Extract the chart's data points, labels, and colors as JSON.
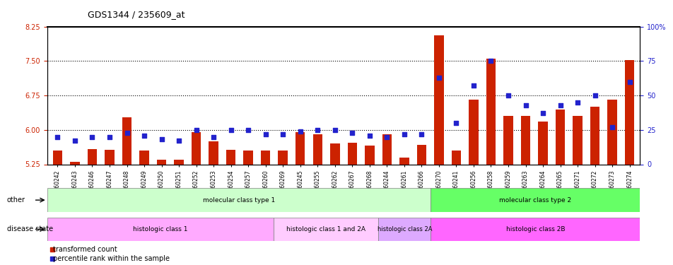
{
  "title": "GDS1344 / 235609_at",
  "samples": [
    "GSM60242",
    "GSM60243",
    "GSM60246",
    "GSM60247",
    "GSM60248",
    "GSM60249",
    "GSM60250",
    "GSM60251",
    "GSM60252",
    "GSM60253",
    "GSM60254",
    "GSM60257",
    "GSM60260",
    "GSM60269",
    "GSM60245",
    "GSM60255",
    "GSM60262",
    "GSM60267",
    "GSM60268",
    "GSM60244",
    "GSM60261",
    "GSM60266",
    "GSM60270",
    "GSM60241",
    "GSM60256",
    "GSM60258",
    "GSM60259",
    "GSM60263",
    "GSM60264",
    "GSM60265",
    "GSM60271",
    "GSM60272",
    "GSM60273",
    "GSM60274"
  ],
  "red_values": [
    5.55,
    5.3,
    5.58,
    5.57,
    6.28,
    5.55,
    5.35,
    5.35,
    5.95,
    5.75,
    5.57,
    5.55,
    5.55,
    5.55,
    5.95,
    5.9,
    5.7,
    5.72,
    5.65,
    5.9,
    5.4,
    5.68,
    8.05,
    5.55,
    6.65,
    7.55,
    6.3,
    6.3,
    6.18,
    6.45,
    6.3,
    6.5,
    6.65,
    7.52
  ],
  "blue_values": [
    20,
    17,
    20,
    20,
    23,
    21,
    18,
    17,
    25,
    20,
    25,
    25,
    22,
    22,
    24,
    25,
    25,
    23,
    21,
    20,
    22,
    22,
    63,
    30,
    57,
    75,
    50,
    43,
    37,
    43,
    45,
    50,
    27,
    60
  ],
  "ylim_left": [
    5.25,
    8.25
  ],
  "ylim_right": [
    0,
    100
  ],
  "yticks_left": [
    5.25,
    6.0,
    6.75,
    7.5,
    8.25
  ],
  "yticks_right": [
    0,
    25,
    50,
    75,
    100
  ],
  "hlines": [
    6.0,
    6.75,
    7.5
  ],
  "bar_color": "#cc2200",
  "blue_color": "#2222cc",
  "bar_width": 0.55,
  "groups": [
    {
      "label": "molecular class type 1",
      "start": 0,
      "end": 22,
      "color": "#ccffcc"
    },
    {
      "label": "molecular class type 2",
      "start": 22,
      "end": 34,
      "color": "#66ff66"
    }
  ],
  "disease_groups": [
    {
      "label": "histologic class 1",
      "start": 0,
      "end": 13,
      "color": "#ffaaff"
    },
    {
      "label": "histologic class 1 and 2A",
      "start": 13,
      "end": 19,
      "color": "#ffccff"
    },
    {
      "label": "histologic class 2A",
      "start": 19,
      "end": 22,
      "color": "#ddaaff"
    },
    {
      "label": "histologic class 2B",
      "start": 22,
      "end": 34,
      "color": "#ff66ff"
    }
  ],
  "other_label": "other",
  "disease_label": "disease state",
  "legend_items": [
    "transformed count",
    "percentile rank within the sample"
  ],
  "title_color": "#000000",
  "left_axis_color": "#cc2200",
  "right_axis_color": "#2222cc"
}
